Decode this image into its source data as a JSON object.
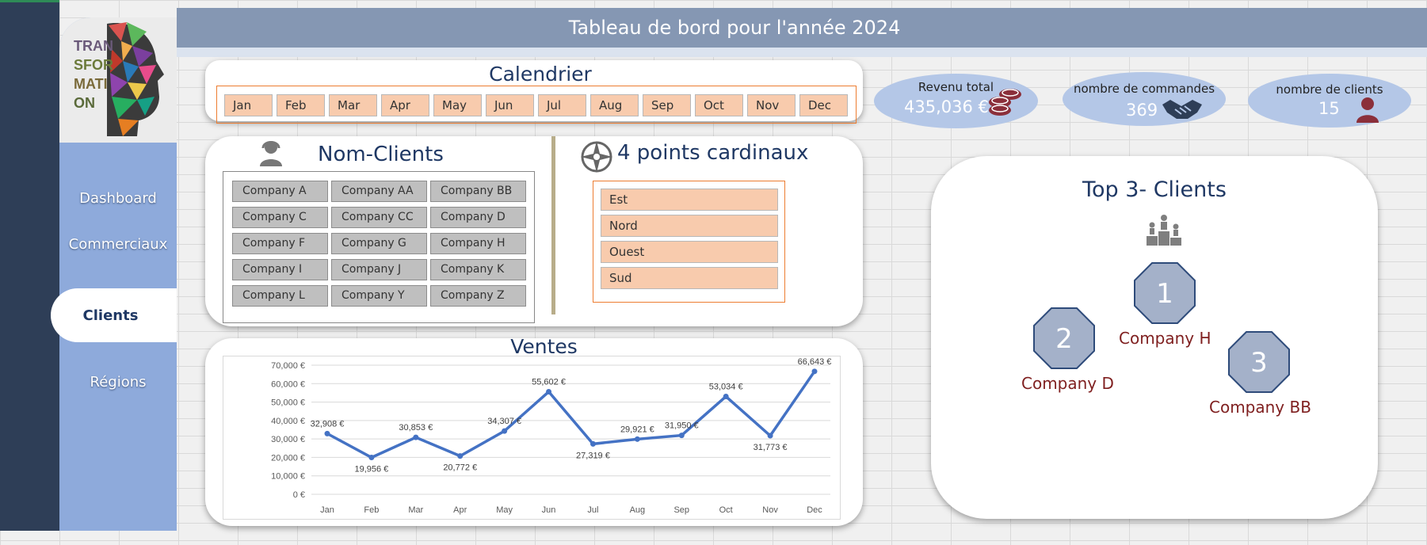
{
  "header": {
    "title": "Tableau de bord pour l'année 2024"
  },
  "sidebar": {
    "logo_text": "TRANSFORMATION",
    "items": [
      {
        "label": "Dashboard"
      },
      {
        "label": "Commerciaux"
      },
      {
        "label": "Clients"
      },
      {
        "label": "Régions"
      }
    ],
    "active": "Clients"
  },
  "calendar": {
    "title": "Calendrier",
    "months": [
      "Jan",
      "Feb",
      "Mar",
      "Apr",
      "May",
      "Jun",
      "Jul",
      "Aug",
      "Sep",
      "Oct",
      "Nov",
      "Dec"
    ]
  },
  "clients_filter": {
    "title": "Nom-Clients",
    "items": [
      "Company A",
      "Company AA",
      "Company BB",
      "Company C",
      "Company CC",
      "Company D",
      "Company F",
      "Company G",
      "Company H",
      "Company I",
      "Company J",
      "Company K",
      "Company L",
      "Company Y",
      "Company Z"
    ]
  },
  "directions": {
    "title": "4 points cardinaux",
    "items": [
      "Est",
      "Nord",
      "Ouest",
      "Sud"
    ]
  },
  "kpis": {
    "revenue": {
      "label": "Revenu total",
      "value": "435,036 €"
    },
    "orders": {
      "label": "nombre de commandes",
      "value": "369"
    },
    "clients": {
      "label": "nombre de clients",
      "value": "15"
    }
  },
  "top3": {
    "title": "Top 3- Clients",
    "ranks": [
      {
        "rank": "1",
        "name": "Company H"
      },
      {
        "rank": "2",
        "name": "Company D"
      },
      {
        "rank": "3",
        "name": "Company BB"
      }
    ]
  },
  "colors": {
    "sidebar": "#8eaadb",
    "navy": "#1f3864",
    "line": "#4472c4",
    "slicer": "#f8cbad",
    "kpi": "#b4c7e7",
    "octagon": "#a4b1c9",
    "rank_text": "#7f1f1f"
  },
  "chart_data": {
    "type": "line",
    "title": "Ventes",
    "categories": [
      "Jan",
      "Feb",
      "Mar",
      "Apr",
      "May",
      "Jun",
      "Jul",
      "Aug",
      "Sep",
      "Oct",
      "Nov",
      "Dec"
    ],
    "values": [
      32908,
      19956,
      30853,
      20772,
      34307,
      55602,
      27319,
      29921,
      31950,
      53034,
      31773,
      66643
    ],
    "data_labels": [
      "32,908 €",
      "19,956 €",
      "30,853 €",
      "20,772 €",
      "34,307 €",
      "55,602 €",
      "27,319 €",
      "29,921 €",
      "31,950 €",
      "53,034 €",
      "31,773 €",
      "66,643 €"
    ],
    "yticks": [
      "0 €",
      "10,000 €",
      "20,000 €",
      "30,000 €",
      "40,000 €",
      "50,000 €",
      "60,000 €",
      "70,000 €"
    ],
    "ylim": [
      0,
      70000
    ],
    "grid": true,
    "legend": "none"
  }
}
